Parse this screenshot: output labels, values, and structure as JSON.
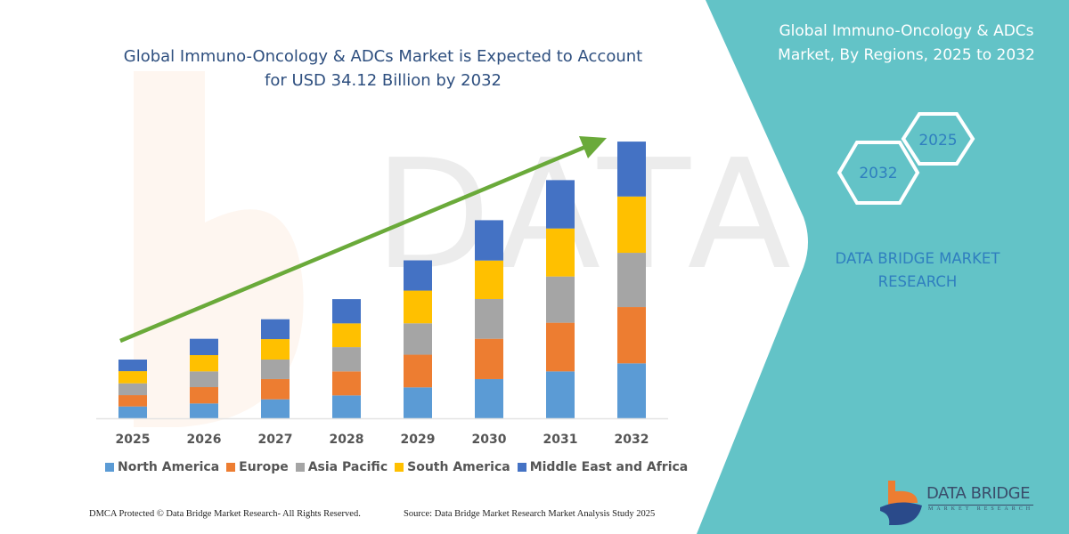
{
  "title": {
    "line1": "Global Immuno-Oncology & ADCs Market is Expected to Account",
    "line2": "for USD 34.12 Billion by 2032"
  },
  "side_panel": {
    "title_line1": "Global Immuno-Oncology & ADCs",
    "title_line2": "Market, By Regions, 2025 to 2032",
    "hex_start": "2025",
    "hex_end": "2032",
    "brand_line1": "DATA BRIDGE MARKET",
    "brand_line2": "RESEARCH",
    "logo_text": "DATA BRIDGE",
    "logo_subtext": "MARKET RESEARCH",
    "color": "#63c3c7"
  },
  "footer": {
    "left": "DMCA Protected © Data Bridge Market Research-  All Rights Reserved.",
    "right": "Source: Data Bridge Market Research  Market Analysis Study 2025"
  },
  "chart_data": {
    "type": "bar",
    "stacked": true,
    "title": "Global Immuno-Oncology & ADCs Market is Expected to Account for USD 34.12 Billion by 2032",
    "categories": [
      "2025",
      "2026",
      "2027",
      "2028",
      "2029",
      "2030",
      "2031",
      "2032"
    ],
    "unit": "USD Billion",
    "axis_visible": false,
    "grid": false,
    "legend_position": "bottom",
    "trend_arrow": true,
    "trend_arrow_color": "#6aaa3a",
    "series": [
      {
        "name": "North America",
        "color": "#5b9bd5",
        "values": [
          1.46,
          1.83,
          2.34,
          2.82,
          3.81,
          4.83,
          5.78,
          6.77
        ]
      },
      {
        "name": "Europe",
        "color": "#ed7d31",
        "values": [
          1.39,
          2.01,
          2.49,
          2.96,
          4.03,
          4.97,
          6.0,
          6.94
        ]
      },
      {
        "name": "Asia Pacific",
        "color": "#a5a5a5",
        "values": [
          1.46,
          1.94,
          2.41,
          2.99,
          3.87,
          4.9,
          5.7,
          6.69
        ]
      },
      {
        "name": "South America",
        "color": "#ffc000",
        "values": [
          1.5,
          2.01,
          2.52,
          2.93,
          4.03,
          4.75,
          5.92,
          6.94
        ]
      },
      {
        "name": "Middle East and Africa",
        "color": "#4472c4",
        "values": [
          1.43,
          2.01,
          2.45,
          2.99,
          3.73,
          4.97,
          5.96,
          6.77
        ]
      }
    ]
  }
}
